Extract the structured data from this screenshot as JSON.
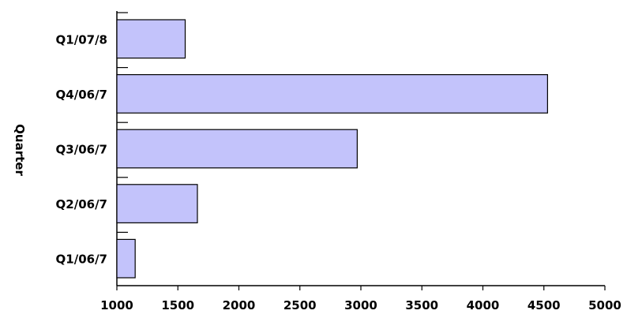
{
  "chart_data": {
    "type": "bar",
    "orientation": "horizontal",
    "title": "",
    "xlabel": "",
    "ylabel": "Quarter",
    "categories": [
      "Q1/07/8",
      "Q4/06/7",
      "Q3/06/7",
      "Q2/06/7",
      "Q1/06/7"
    ],
    "values": [
      1560,
      4530,
      2970,
      1660,
      1150
    ],
    "xlim": [
      1000,
      5000
    ],
    "xticks": [
      1000,
      1500,
      2000,
      2500,
      3000,
      3500,
      4000,
      4500,
      5000
    ],
    "grid": false,
    "legend": "none",
    "colors": {
      "bar_fill": "#c3c3fb",
      "bar_stroke": "#000000",
      "axis": "#000000"
    }
  }
}
